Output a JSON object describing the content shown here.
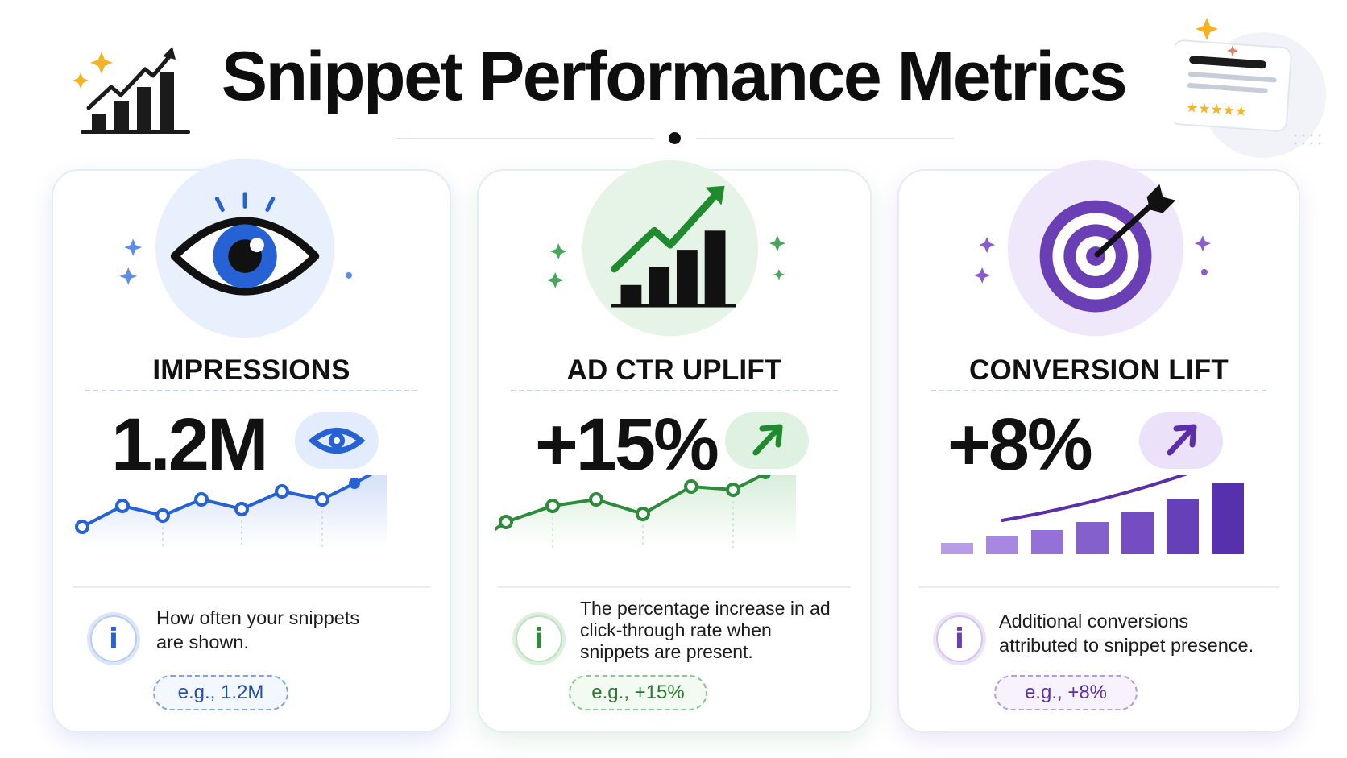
{
  "page": {
    "title": "Snippet Performance Metrics"
  },
  "colors": {
    "blue": "#2762d4",
    "blue_soft": "#e8f0fd",
    "green": "#2e8b3a",
    "green_soft": "#e5f4e6",
    "purple": "#6a3fb5",
    "purple_soft": "#efe8fb",
    "star_gold": "#f5b324"
  },
  "icons": {
    "header_logo": "rising-bar-chart-with-sparkles",
    "header_side": "snippet-card-with-stars",
    "impressions": "eye-icon",
    "ctr": "bar-chart-trend-up-icon",
    "conversion": "target-with-arrow-icon",
    "info": "info-icon"
  },
  "cards": [
    {
      "id": "impressions",
      "title": "IMPRESSIONS",
      "value": "1.2M",
      "description": [
        "How often your snippets",
        "are shown."
      ],
      "example": "e.g., 1.2M"
    },
    {
      "id": "ctr",
      "title": "AD CTR UPLIFT",
      "value": "+15%",
      "description": [
        "The percentage increase in ad",
        "click-through rate when",
        "snippets are present."
      ],
      "example": "e.g., +15%"
    },
    {
      "id": "conversion",
      "title": "CONVERSION LIFT",
      "value": "+8%",
      "description": [
        "Additional conversions",
        "attributed to snippet presence."
      ],
      "example": "e.g., +8%"
    }
  ]
}
